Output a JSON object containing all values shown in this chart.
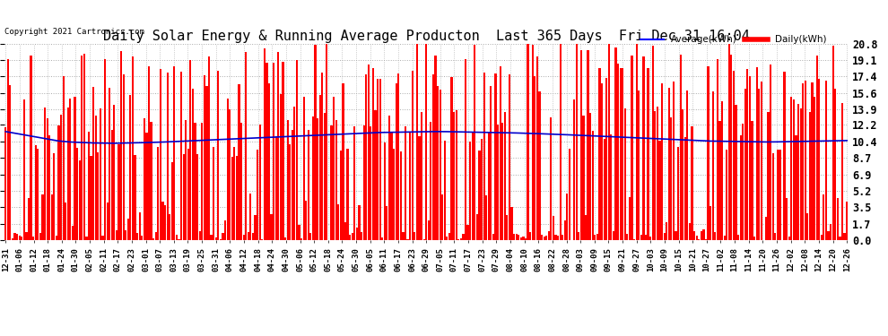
{
  "title": "Daily Solar Energy & Running Average Producton  Last 365 Days  Fri Dec 31 16:04",
  "copyright": "Copyright 2021 Cartronics.com",
  "ylabel_right_ticks": [
    0.0,
    1.7,
    3.5,
    5.2,
    6.9,
    8.7,
    10.4,
    12.2,
    13.9,
    15.6,
    17.4,
    19.1,
    20.8
  ],
  "ymax": 20.8,
  "ymin": 0.0,
  "bar_color": "#ff0000",
  "avg_line_color": "#0000cc",
  "background_color": "#ffffff",
  "grid_color": "#aaaaaa",
  "title_fontsize": 11,
  "legend_avg_color": "#0000ff",
  "legend_daily_color": "#ff0000",
  "n_days": 365,
  "avg_line_values": [
    11.5,
    11.3,
    11.1,
    10.9,
    10.7,
    10.5,
    10.4,
    10.35,
    10.3,
    10.28,
    10.26,
    10.28,
    10.3,
    10.33,
    10.36,
    10.4,
    10.45,
    10.5,
    10.55,
    10.6,
    10.65,
    10.7,
    10.75,
    10.8,
    10.85,
    10.9,
    10.95,
    11.0,
    11.05,
    11.1,
    11.15,
    11.2,
    11.25,
    11.3,
    11.35,
    11.4,
    11.42,
    11.44,
    11.46,
    11.48,
    11.5,
    11.5,
    11.48,
    11.46,
    11.44,
    11.42,
    11.4,
    11.38,
    11.35,
    11.32,
    11.28,
    11.24,
    11.2,
    11.15,
    11.1,
    11.05,
    11.0,
    10.95,
    10.9,
    10.85,
    10.8,
    10.75,
    10.7,
    10.65,
    10.6,
    10.55,
    10.5,
    10.48,
    10.46,
    10.44,
    10.42,
    10.4,
    10.4,
    10.42,
    10.44,
    10.46,
    10.48,
    10.5,
    10.52,
    10.55
  ],
  "x_tick_labels": [
    "12-31",
    "01-06",
    "01-12",
    "01-18",
    "01-24",
    "01-30",
    "02-05",
    "02-11",
    "02-17",
    "02-23",
    "03-01",
    "03-07",
    "03-13",
    "03-19",
    "03-25",
    "03-31",
    "04-06",
    "04-12",
    "04-18",
    "04-24",
    "04-30",
    "05-06",
    "05-12",
    "05-18",
    "05-24",
    "05-30",
    "06-05",
    "06-11",
    "06-17",
    "06-23",
    "06-29",
    "07-05",
    "07-11",
    "07-17",
    "07-23",
    "07-29",
    "08-04",
    "08-10",
    "08-16",
    "08-22",
    "08-28",
    "09-03",
    "09-09",
    "09-15",
    "09-21",
    "09-27",
    "10-03",
    "10-09",
    "10-15",
    "10-21",
    "10-27",
    "11-02",
    "11-08",
    "11-14",
    "11-20",
    "11-26",
    "12-02",
    "12-08",
    "12-14",
    "12-20",
    "12-26"
  ]
}
